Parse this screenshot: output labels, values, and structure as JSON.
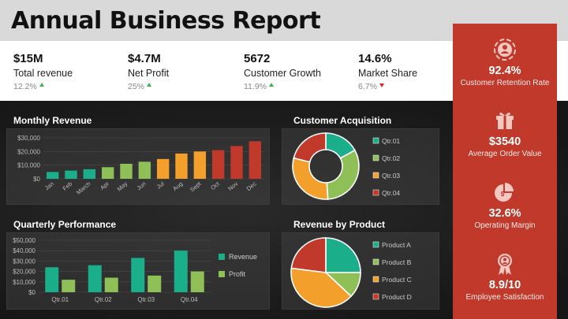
{
  "header": {
    "title": "Annual Business Report"
  },
  "kpis": [
    {
      "value": "$15M",
      "label": "Total revenue",
      "change": "12.2%",
      "trend": "up"
    },
    {
      "value": "$4.7M",
      "label": "Net Profit",
      "change": "25%",
      "trend": "up"
    },
    {
      "value": "5672",
      "label": "Customer Growth",
      "change": "11.9%",
      "trend": "up"
    },
    {
      "value": "14.6%",
      "label": "Market Share",
      "change": "6.7%",
      "trend": "down"
    }
  ],
  "sidebar": [
    {
      "icon": "target-user-icon",
      "value": "92.4%",
      "label": "Customer Retention Rate"
    },
    {
      "icon": "gift-box-icon",
      "value": "$3540",
      "label": "Average Order Value"
    },
    {
      "icon": "pie-chart-icon",
      "value": "32.6%",
      "label": "Operating Margin"
    },
    {
      "icon": "award-ribbon-icon",
      "value": "8.9/10",
      "label": "Employee Satisfaction"
    }
  ],
  "sections": {
    "monthly_revenue": "Monthly Revenue",
    "customer_acquisition": "Customer Acquisition",
    "quarterly_performance": "Quarterly Performance",
    "revenue_by_product": "Revenue by Product"
  },
  "colors": {
    "teal": "#1aae8a",
    "green": "#8fc057",
    "orange": "#f2a02b",
    "red": "#c0392b",
    "accent_red": "#c0392b"
  },
  "chart_data": [
    {
      "id": "monthly_revenue",
      "type": "bar",
      "title": "Monthly Revenue",
      "categories": [
        "Jan",
        "Feb",
        "March",
        "Apr",
        "May",
        "Jun",
        "Jul",
        "Aug",
        "Sept",
        "Oct",
        "Nov",
        "Dec"
      ],
      "values": [
        5000,
        6000,
        7000,
        8500,
        11000,
        12500,
        14500,
        18500,
        20000,
        21000,
        24000,
        27500
      ],
      "bar_colors": [
        "#1aae8a",
        "#1aae8a",
        "#1aae8a",
        "#8fc057",
        "#8fc057",
        "#8fc057",
        "#f2a02b",
        "#f2a02b",
        "#f2a02b",
        "#c0392b",
        "#c0392b",
        "#c0392b"
      ],
      "ylim": [
        0,
        30000
      ],
      "yticks": [
        "$0",
        "$10,000",
        "$20,000",
        "$30,000"
      ],
      "ytick_values": [
        0,
        10000,
        20000,
        30000
      ],
      "grid": true
    },
    {
      "id": "customer_acquisition",
      "type": "pie",
      "variant": "donut",
      "title": "Customer Acquisition",
      "labels": [
        "Qtr.01",
        "Qtr.02",
        "Qtr.03",
        "Qtr.04"
      ],
      "values": [
        17,
        32,
        30,
        21
      ],
      "colors": [
        "#1aae8a",
        "#8fc057",
        "#f2a02b",
        "#c0392b"
      ],
      "legend": "right"
    },
    {
      "id": "quarterly_performance",
      "type": "bar",
      "title": "Quarterly Performance",
      "categories": [
        "Qtr.01",
        "Qtr.02",
        "Qtr.03",
        "Qtr.04"
      ],
      "series": [
        {
          "name": "Revenue",
          "values": [
            24000,
            26000,
            33000,
            40000
          ],
          "color": "#1aae8a"
        },
        {
          "name": "Profit",
          "values": [
            12000,
            14000,
            16000,
            20000
          ],
          "color": "#8fc057"
        }
      ],
      "ylim": [
        0,
        50000
      ],
      "yticks": [
        "$0",
        "$10,000",
        "$20,000",
        "$30,000",
        "$40,000",
        "$50,000"
      ],
      "ytick_values": [
        0,
        10000,
        20000,
        30000,
        40000,
        50000
      ],
      "legend": "right",
      "grid": true
    },
    {
      "id": "revenue_by_product",
      "type": "pie",
      "title": "Revenue by Product",
      "labels": [
        "Product A",
        "Product B",
        "Product C",
        "Product D"
      ],
      "values": [
        25,
        12,
        40,
        23
      ],
      "colors": [
        "#1aae8a",
        "#8fc057",
        "#f2a02b",
        "#c0392b"
      ],
      "legend": "right"
    }
  ]
}
